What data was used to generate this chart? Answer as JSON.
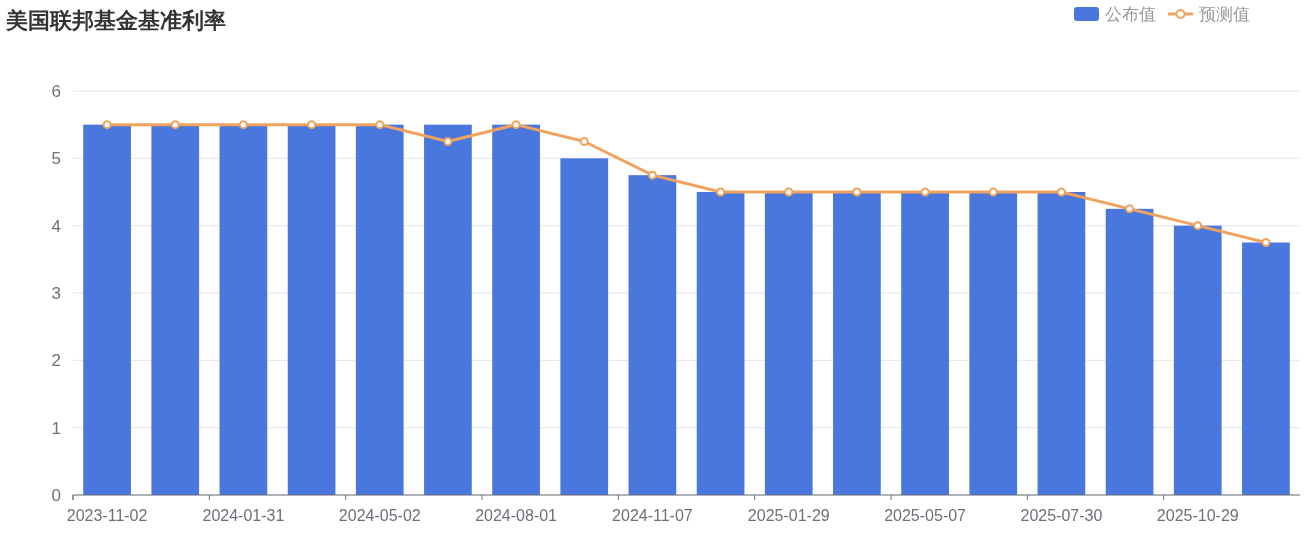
{
  "chart_data": {
    "type": "bar",
    "title": "美国联邦基金基准利率",
    "categories": [
      "2023-11-02",
      null,
      "2024-01-31",
      null,
      "2024-05-02",
      null,
      "2024-08-01",
      null,
      "2024-11-07",
      null,
      "2025-01-29",
      null,
      "2025-05-07",
      null,
      "2025-07-30",
      null,
      "2025-10-29",
      null
    ],
    "series": [
      {
        "name": "公布值",
        "color": "#4a77dd",
        "values": [
          5.5,
          5.5,
          5.5,
          5.5,
          5.5,
          5.5,
          5.5,
          5.0,
          4.75,
          4.5,
          4.5,
          4.5,
          4.5,
          4.5,
          4.5,
          4.25,
          4.0,
          3.75
        ]
      },
      {
        "name": "预测值",
        "type": "line",
        "color": "#f0a35e",
        "values": [
          5.5,
          5.5,
          5.5,
          5.5,
          5.5,
          5.25,
          5.5,
          5.25,
          4.75,
          4.5,
          4.5,
          4.5,
          4.5,
          4.5,
          4.5,
          4.25,
          4.0,
          3.75
        ]
      }
    ],
    "ylim": [
      0,
      6
    ],
    "yticks": [
      0,
      1,
      2,
      3,
      4,
      5,
      6
    ],
    "grid": "y",
    "legend": "top right",
    "marker": "circle",
    "line_style": "solid"
  }
}
